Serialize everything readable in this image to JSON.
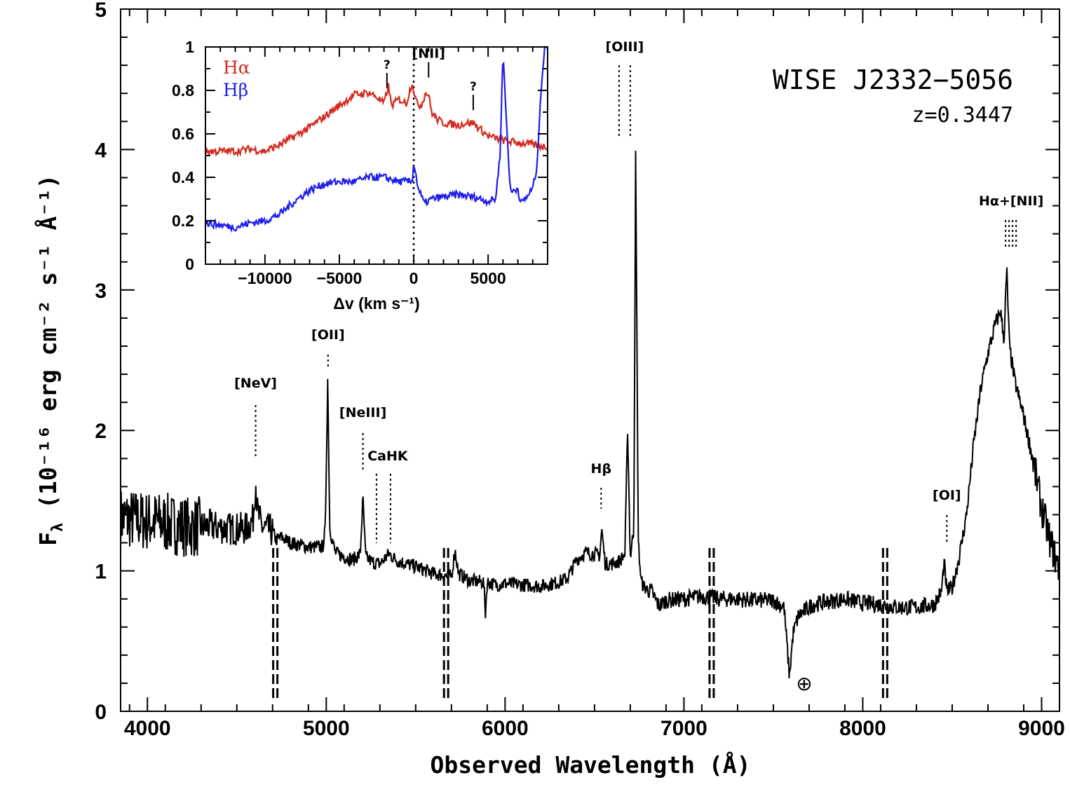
{
  "chart_data": [
    {
      "type": "line",
      "title": "WISE J2332−5056",
      "subtitle": "z=0.3447",
      "xlabel": "Observed Wavelength (Å)",
      "ylabel_main": "F",
      "ylabel_sub": "λ",
      "ylabel_rest": " (10⁻¹⁶ erg cm⁻² s⁻¹ Å⁻¹)",
      "xlim": [
        3850,
        9100
      ],
      "ylim": [
        0,
        5
      ],
      "xticks": [
        4000,
        5000,
        6000,
        7000,
        8000,
        9000
      ],
      "xtick_labels": [
        "4000",
        "5000",
        "6000",
        "7000",
        "8000",
        "9000"
      ],
      "yticks": [
        0,
        1,
        2,
        3,
        4,
        5
      ],
      "ytick_labels": [
        "0",
        "1",
        "2",
        "3",
        "4",
        "5"
      ],
      "series": [
        {
          "name": "spectrum",
          "color": "#000000",
          "x": [
            3850,
            3950,
            4050,
            4150,
            4250,
            4350,
            4450,
            4550,
            4590,
            4605,
            4615,
            4640,
            4700,
            4720,
            4750,
            4800,
            4900,
            4980,
            4995,
            5008,
            5020,
            5050,
            5100,
            5150,
            5190,
            5205,
            5220,
            5260,
            5300,
            5350,
            5400,
            5500,
            5600,
            5700,
            5720,
            5740,
            5800,
            5880,
            5890,
            5900,
            5950,
            6000,
            6100,
            6200,
            6300,
            6350,
            6400,
            6450,
            6500,
            6530,
            6540,
            6560,
            6600,
            6640,
            6670,
            6685,
            6700,
            6720,
            6730,
            6745,
            6760,
            6780,
            6820,
            6860,
            6900,
            7000,
            7100,
            7200,
            7300,
            7400,
            7500,
            7560,
            7590,
            7610,
            7640,
            7680,
            7720,
            7800,
            7900,
            8000,
            8100,
            8200,
            8300,
            8400,
            8440,
            8455,
            8470,
            8500,
            8540,
            8580,
            8620,
            8660,
            8700,
            8740,
            8770,
            8790,
            8805,
            8820,
            8850,
            8900,
            8950,
            9000,
            9050,
            9100
          ],
          "y": [
            1.38,
            1.36,
            1.35,
            1.33,
            1.31,
            1.32,
            1.3,
            1.3,
            1.36,
            1.65,
            1.42,
            1.31,
            1.28,
            1.22,
            1.24,
            1.2,
            1.17,
            1.17,
            1.3,
            2.37,
            1.3,
            1.13,
            1.1,
            1.08,
            1.12,
            1.52,
            1.1,
            1.06,
            1.05,
            1.12,
            1.07,
            1.03,
            0.98,
            0.96,
            1.15,
            0.98,
            0.93,
            0.92,
            0.7,
            0.92,
            0.9,
            0.91,
            0.9,
            0.89,
            0.92,
            0.95,
            1.08,
            1.13,
            1.12,
            1.11,
            1.3,
            1.05,
            1.05,
            1.07,
            1.12,
            2.02,
            1.1,
            1.3,
            3.95,
            1.2,
            0.93,
            0.88,
            0.85,
            0.75,
            0.79,
            0.8,
            0.82,
            0.8,
            0.8,
            0.79,
            0.79,
            0.74,
            0.25,
            0.55,
            0.68,
            0.72,
            0.76,
            0.78,
            0.8,
            0.77,
            0.76,
            0.74,
            0.74,
            0.76,
            0.85,
            1.06,
            0.85,
            0.88,
            1.1,
            1.4,
            1.9,
            2.3,
            2.55,
            2.75,
            2.85,
            2.65,
            3.15,
            2.6,
            2.35,
            2.1,
            1.8,
            1.45,
            1.2,
            1.0
          ]
        }
      ],
      "emission_lines": [
        {
          "label": "[NeV]",
          "wavelength": 4605,
          "flux": 1.75
        },
        {
          "label": "[OII]",
          "wavelength": 5010,
          "flux": 2.45
        },
        {
          "label": "[NeIII]",
          "wavelength": 5205,
          "flux": 1.97
        },
        {
          "label": "CaHK",
          "wavelength": 5320,
          "flux": 1.69
        },
        {
          "label": "Hβ",
          "wavelength": 6537,
          "flux": 1.45
        },
        {
          "label": "[OIII]",
          "wavelength": 6700,
          "flux": 4.6
        },
        {
          "label": "[OI]",
          "wavelength": 8470,
          "flux": 1.38
        },
        {
          "label": "Hα+[NII]",
          "wavelength": 8830,
          "flux": 3.5
        }
      ],
      "absorption_marks": [
        4715,
        5670,
        7155,
        8125
      ],
      "telluric_symbol": "⊕",
      "telluric_wavelength": 7660
    },
    {
      "type": "line",
      "name": "inset",
      "xlabel": "Δv (km s⁻¹)",
      "xlim": [
        -14000,
        9000
      ],
      "ylim": [
        0,
        1
      ],
      "xticks": [
        -10000,
        -5000,
        0,
        5000
      ],
      "xtick_labels": [
        "−10000",
        "−5000",
        "0",
        "5000"
      ],
      "yticks": [
        0,
        0.2,
        0.4,
        0.6,
        0.8,
        1
      ],
      "ytick_labels": [
        "0",
        "0.2",
        "0.4",
        "0.6",
        "0.8",
        "1"
      ],
      "series": [
        {
          "name": "Hα",
          "color": "#d42a1e",
          "x": [
            -14000,
            -12000,
            -11000,
            -10000,
            -9000,
            -8000,
            -7000,
            -6000,
            -5000,
            -4000,
            -3000,
            -2500,
            -2000,
            -1700,
            -1500,
            -1000,
            -500,
            -100,
            0,
            200,
            500,
            800,
            1000,
            1200,
            1500,
            2000,
            3000,
            3500,
            4000,
            4500,
            5000,
            6000,
            7000,
            8000,
            9000
          ],
          "y": [
            0.52,
            0.52,
            0.53,
            0.52,
            0.55,
            0.59,
            0.63,
            0.68,
            0.73,
            0.78,
            0.79,
            0.77,
            0.74,
            0.82,
            0.73,
            0.76,
            0.74,
            0.84,
            0.8,
            0.74,
            0.73,
            0.79,
            0.78,
            0.7,
            0.67,
            0.65,
            0.64,
            0.65,
            0.65,
            0.62,
            0.59,
            0.57,
            0.56,
            0.55,
            0.54
          ]
        },
        {
          "name": "Hβ",
          "color": "#1e1ee8",
          "x": [
            -14000,
            -12000,
            -11000,
            -10000,
            -9000,
            -8000,
            -7000,
            -6000,
            -5000,
            -4000,
            -3000,
            -2000,
            -1000,
            -500,
            -100,
            0,
            300,
            700,
            1200,
            2000,
            3000,
            4000,
            5000,
            5500,
            5800,
            6000,
            6200,
            6500,
            7000,
            7200,
            7500,
            8000,
            8300,
            8500,
            8800
          ],
          "y": [
            0.19,
            0.17,
            0.19,
            0.2,
            0.23,
            0.29,
            0.34,
            0.37,
            0.38,
            0.38,
            0.4,
            0.4,
            0.38,
            0.38,
            0.38,
            0.47,
            0.35,
            0.28,
            0.3,
            0.31,
            0.32,
            0.31,
            0.29,
            0.3,
            0.5,
            0.98,
            0.7,
            0.33,
            0.35,
            0.28,
            0.3,
            0.35,
            0.45,
            0.75,
            1.0
          ]
        }
      ],
      "legend": [
        {
          "label": "Hα",
          "color": "#d42a1e"
        },
        {
          "label": "Hβ",
          "color": "#1e1ee8"
        }
      ],
      "markers": [
        {
          "label": "?",
          "velocity": -1800,
          "value": 0.88
        },
        {
          "label": "[NII]",
          "velocity": 1000,
          "value": 0.93
        },
        {
          "label": "?",
          "velocity": 4000,
          "value": 0.78
        }
      ]
    }
  ]
}
